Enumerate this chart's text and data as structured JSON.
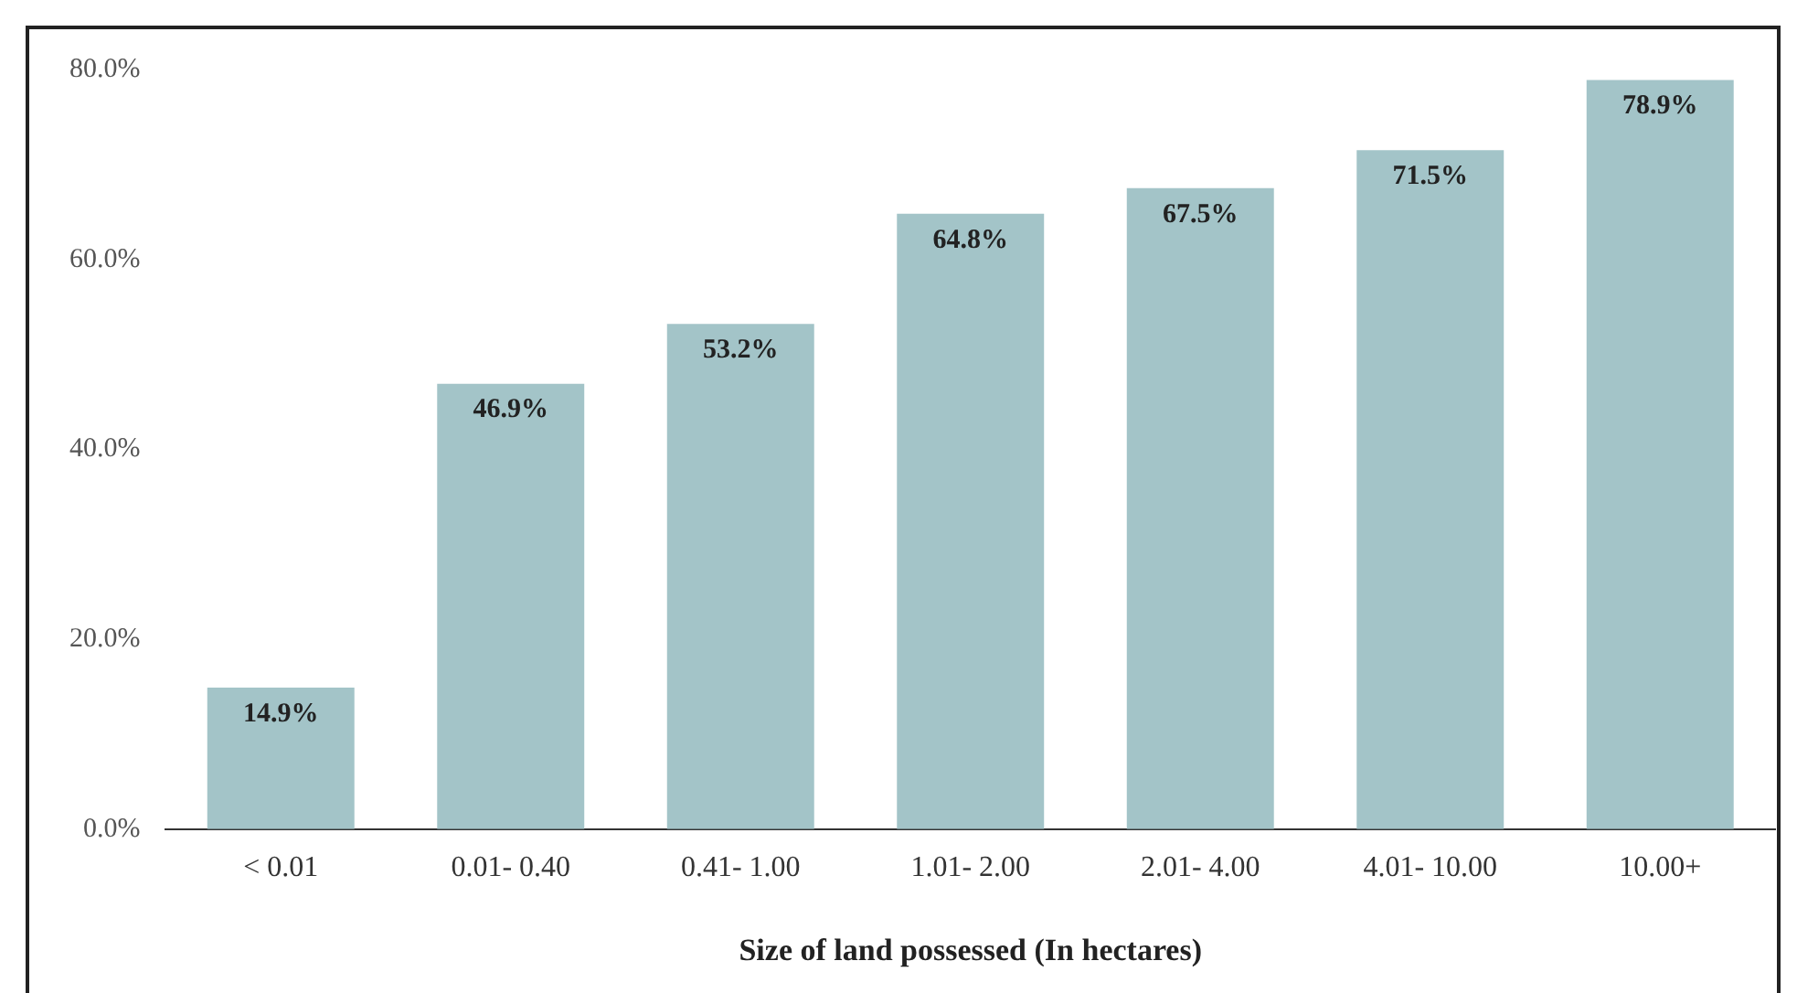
{
  "chart_data": {
    "type": "bar",
    "xlabel": "Size of land possessed (In hectares)",
    "categories": [
      "< 0.01",
      "0.01- 0.40",
      "0.41- 1.00",
      "1.01- 2.00",
      "2.01- 4.00",
      "4.01- 10.00",
      "10.00+"
    ],
    "values": [
      14.9,
      46.9,
      53.2,
      64.8,
      67.5,
      71.5,
      78.9
    ],
    "value_labels": [
      "14.9%",
      "46.9%",
      "53.2%",
      "64.8%",
      "67.5%",
      "71.5%",
      "78.9%"
    ],
    "color": "#a3c4c8",
    "ylim": [
      0,
      80
    ],
    "yticks": [
      {
        "value": 0,
        "label": "0.0%"
      },
      {
        "value": 20,
        "label": "20.0%"
      },
      {
        "value": 40,
        "label": "40.0%"
      },
      {
        "value": 60,
        "label": "60.0%"
      },
      {
        "value": 80,
        "label": "80.0%"
      }
    ],
    "grid": false,
    "legend": false
  }
}
